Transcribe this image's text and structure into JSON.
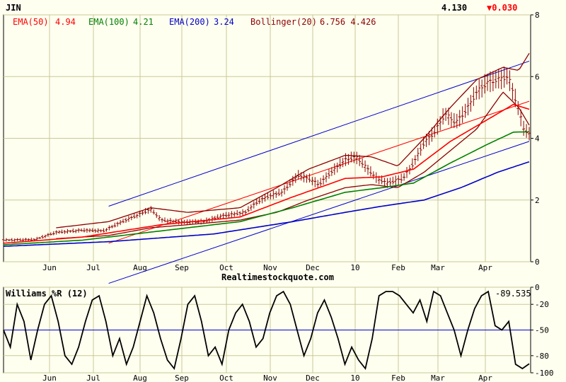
{
  "header": {
    "symbol": "JIN",
    "last_price": "4.130",
    "change": "▼0.030",
    "change_color": "#ff0000"
  },
  "source": "Realtimestockquote.com",
  "colors": {
    "background": "#fffff0",
    "grid": "#c8c896",
    "price_bar": "#8b0000",
    "ema50": "#ff0000",
    "ema100": "#008000",
    "ema200": "#0000c8",
    "bollinger": "#8b0000",
    "trendline": "#0000c8",
    "williams": "#000000",
    "williams_ref": "#0000c8"
  },
  "chart_data": [
    {
      "type": "line",
      "title": "JIN",
      "x_ticks": [
        "Jun",
        "Jul",
        "Aug",
        "Sep",
        "Oct",
        "Nov",
        "Dec",
        "10",
        "Feb",
        "Mar",
        "Apr"
      ],
      "y_ticks": [
        0,
        2,
        4,
        6,
        8
      ],
      "ylim": [
        0,
        8
      ],
      "grid": true,
      "legend_position": "top-left",
      "legend": [
        {
          "label": "EMA(50)",
          "value": "4.94",
          "color": "#ff0000"
        },
        {
          "label": "EMA(100)",
          "value": "4.21",
          "color": "#008000"
        },
        {
          "label": "EMA(200)",
          "value": "3.24",
          "color": "#0000c8"
        },
        {
          "label": "Bollinger(20)",
          "value": "6.756 4.426",
          "color": "#8b0000"
        }
      ],
      "price_anchors": [
        {
          "t": 0,
          "v": 0.7
        },
        {
          "t": 0.06,
          "v": 0.72
        },
        {
          "t": 0.1,
          "v": 0.95
        },
        {
          "t": 0.15,
          "v": 1.02
        },
        {
          "t": 0.19,
          "v": 1.0
        },
        {
          "t": 0.22,
          "v": 1.25
        },
        {
          "t": 0.26,
          "v": 1.55
        },
        {
          "t": 0.28,
          "v": 1.7
        },
        {
          "t": 0.3,
          "v": 1.35
        },
        {
          "t": 0.34,
          "v": 1.28
        },
        {
          "t": 0.38,
          "v": 1.3
        },
        {
          "t": 0.42,
          "v": 1.5
        },
        {
          "t": 0.46,
          "v": 1.6
        },
        {
          "t": 0.48,
          "v": 1.9
        },
        {
          "t": 0.5,
          "v": 2.1
        },
        {
          "t": 0.53,
          "v": 2.25
        },
        {
          "t": 0.56,
          "v": 2.8
        },
        {
          "t": 0.58,
          "v": 2.7
        },
        {
          "t": 0.6,
          "v": 2.5
        },
        {
          "t": 0.62,
          "v": 2.85
        },
        {
          "t": 0.65,
          "v": 3.3
        },
        {
          "t": 0.67,
          "v": 3.4
        },
        {
          "t": 0.69,
          "v": 3.05
        },
        {
          "t": 0.71,
          "v": 2.7
        },
        {
          "t": 0.73,
          "v": 2.55
        },
        {
          "t": 0.76,
          "v": 2.7
        },
        {
          "t": 0.78,
          "v": 3.2
        },
        {
          "t": 0.8,
          "v": 3.85
        },
        {
          "t": 0.82,
          "v": 4.2
        },
        {
          "t": 0.84,
          "v": 4.8
        },
        {
          "t": 0.86,
          "v": 4.5
        },
        {
          "t": 0.88,
          "v": 4.9
        },
        {
          "t": 0.9,
          "v": 5.5
        },
        {
          "t": 0.92,
          "v": 5.8
        },
        {
          "t": 0.94,
          "v": 5.9
        },
        {
          "t": 0.96,
          "v": 6.0
        },
        {
          "t": 0.975,
          "v": 5.2
        },
        {
          "t": 0.99,
          "v": 4.3
        },
        {
          "t": 1.0,
          "v": 4.13
        }
      ],
      "ema50": [
        {
          "t": 0,
          "v": 0.6
        },
        {
          "t": 0.15,
          "v": 0.8
        },
        {
          "t": 0.3,
          "v": 1.2
        },
        {
          "t": 0.45,
          "v": 1.45
        },
        {
          "t": 0.55,
          "v": 2.1
        },
        {
          "t": 0.65,
          "v": 2.7
        },
        {
          "t": 0.72,
          "v": 2.75
        },
        {
          "t": 0.78,
          "v": 3.0
        },
        {
          "t": 0.85,
          "v": 3.9
        },
        {
          "t": 0.92,
          "v": 4.6
        },
        {
          "t": 0.97,
          "v": 5.1
        },
        {
          "t": 1.0,
          "v": 4.94
        }
      ],
      "ema100": [
        {
          "t": 0,
          "v": 0.55
        },
        {
          "t": 0.15,
          "v": 0.7
        },
        {
          "t": 0.3,
          "v": 1.0
        },
        {
          "t": 0.45,
          "v": 1.3
        },
        {
          "t": 0.55,
          "v": 1.75
        },
        {
          "t": 0.65,
          "v": 2.25
        },
        {
          "t": 0.72,
          "v": 2.4
        },
        {
          "t": 0.78,
          "v": 2.55
        },
        {
          "t": 0.85,
          "v": 3.2
        },
        {
          "t": 0.92,
          "v": 3.8
        },
        {
          "t": 0.97,
          "v": 4.2
        },
        {
          "t": 1.0,
          "v": 4.21
        }
      ],
      "ema200": [
        {
          "t": 0,
          "v": 0.5
        },
        {
          "t": 0.2,
          "v": 0.65
        },
        {
          "t": 0.4,
          "v": 0.9
        },
        {
          "t": 0.55,
          "v": 1.3
        },
        {
          "t": 0.65,
          "v": 1.6
        },
        {
          "t": 0.72,
          "v": 1.8
        },
        {
          "t": 0.8,
          "v": 2.0
        },
        {
          "t": 0.87,
          "v": 2.4
        },
        {
          "t": 0.94,
          "v": 2.9
        },
        {
          "t": 1.0,
          "v": 3.24
        }
      ],
      "bollinger_upper": [
        {
          "t": 0.1,
          "v": 1.1
        },
        {
          "t": 0.2,
          "v": 1.3
        },
        {
          "t": 0.28,
          "v": 1.75
        },
        {
          "t": 0.35,
          "v": 1.6
        },
        {
          "t": 0.45,
          "v": 1.75
        },
        {
          "t": 0.52,
          "v": 2.4
        },
        {
          "t": 0.58,
          "v": 3.0
        },
        {
          "t": 0.65,
          "v": 3.45
        },
        {
          "t": 0.7,
          "v": 3.4
        },
        {
          "t": 0.75,
          "v": 3.1
        },
        {
          "t": 0.8,
          "v": 4.0
        },
        {
          "t": 0.85,
          "v": 5.0
        },
        {
          "t": 0.9,
          "v": 5.9
        },
        {
          "t": 0.95,
          "v": 6.3
        },
        {
          "t": 0.98,
          "v": 6.2
        },
        {
          "t": 1.0,
          "v": 6.756
        }
      ],
      "bollinger_lower": [
        {
          "t": 0.1,
          "v": 0.75
        },
        {
          "t": 0.2,
          "v": 0.85
        },
        {
          "t": 0.28,
          "v": 1.1
        },
        {
          "t": 0.35,
          "v": 1.2
        },
        {
          "t": 0.45,
          "v": 1.35
        },
        {
          "t": 0.52,
          "v": 1.6
        },
        {
          "t": 0.58,
          "v": 2.0
        },
        {
          "t": 0.65,
          "v": 2.4
        },
        {
          "t": 0.7,
          "v": 2.5
        },
        {
          "t": 0.75,
          "v": 2.4
        },
        {
          "t": 0.8,
          "v": 2.9
        },
        {
          "t": 0.85,
          "v": 3.6
        },
        {
          "t": 0.9,
          "v": 4.3
        },
        {
          "t": 0.95,
          "v": 5.5
        },
        {
          "t": 0.98,
          "v": 5.0
        },
        {
          "t": 1.0,
          "v": 4.426
        }
      ],
      "trendlines": [
        {
          "t1": 0.2,
          "v1": 1.8,
          "t2": 1.0,
          "v2": 6.5,
          "color": "#0000c8"
        },
        {
          "t1": 0.2,
          "v1": -0.7,
          "t2": 1.0,
          "v2": 3.9,
          "color": "#0000c8"
        },
        {
          "t1": 0.2,
          "v1": 0.6,
          "t2": 1.0,
          "v2": 5.2,
          "color": "#ff0000"
        }
      ]
    },
    {
      "type": "line",
      "title": "Williams %R (12)",
      "current_value": "-89.535",
      "y_ticks": [
        "0",
        "-20",
        "-50",
        "-80",
        "-100"
      ],
      "ylim": [
        -100,
        0
      ],
      "reference_line": -50,
      "grid": true,
      "x_ticks": [
        "Jun",
        "Jul",
        "Aug",
        "Sep",
        "Oct",
        "Nov",
        "Dec",
        "10",
        "Feb",
        "Mar",
        "Apr"
      ],
      "values": [
        -50,
        -70,
        -20,
        -40,
        -85,
        -50,
        -20,
        -10,
        -40,
        -80,
        -90,
        -70,
        -40,
        -15,
        -10,
        -40,
        -80,
        -60,
        -90,
        -70,
        -40,
        -10,
        -30,
        -60,
        -85,
        -95,
        -60,
        -20,
        -10,
        -40,
        -80,
        -70,
        -90,
        -50,
        -30,
        -20,
        -40,
        -70,
        -60,
        -30,
        -10,
        -5,
        -20,
        -50,
        -80,
        -60,
        -30,
        -15,
        -35,
        -60,
        -90,
        -70,
        -85,
        -95,
        -60,
        -10,
        -5,
        -5,
        -10,
        -20,
        -30,
        -15,
        -40,
        -5,
        -10,
        -30,
        -50,
        -80,
        -50,
        -25,
        -10,
        -5,
        -45,
        -50,
        -40,
        -90,
        -95,
        -89.5
      ]
    }
  ]
}
